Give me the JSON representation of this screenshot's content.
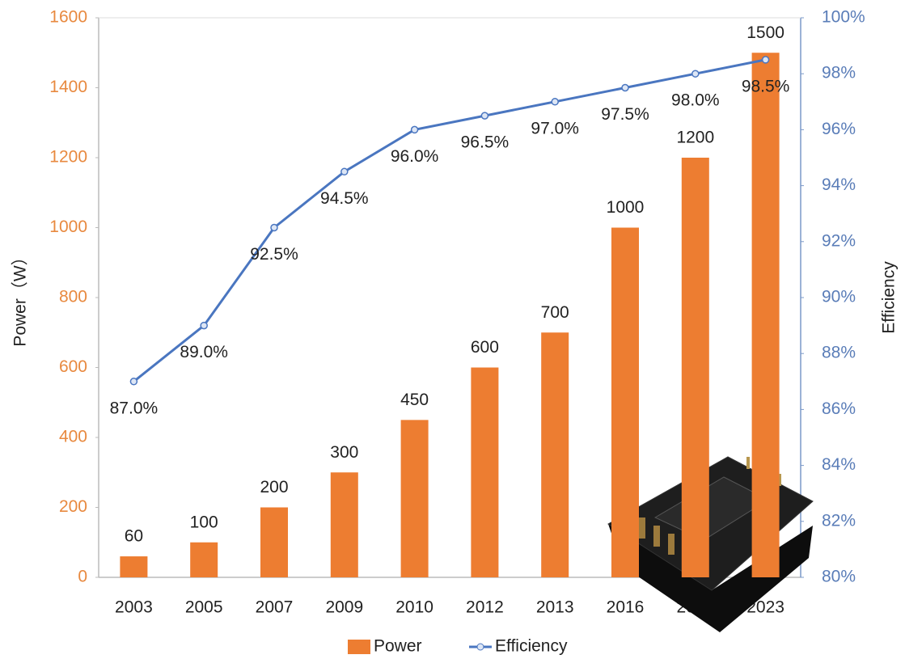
{
  "chart_data": {
    "type": "bar",
    "categories": [
      "2003",
      "2005",
      "2007",
      "2009",
      "2010",
      "2012",
      "2013",
      "2016",
      "2019",
      "2023"
    ],
    "series": [
      {
        "name": "Power",
        "type": "bar",
        "color": "#ED7D31",
        "values": [
          60,
          100,
          200,
          300,
          450,
          600,
          700,
          1000,
          1200,
          1500
        ]
      },
      {
        "name": "Efficiency",
        "type": "line",
        "axis": "y2",
        "color": "#4A76C0",
        "values": [
          87,
          89,
          92.5,
          94.5,
          96,
          96.5,
          97,
          97.5,
          98,
          98.5
        ],
        "value_labels": [
          "87.0%",
          "89.0%",
          "92.5%",
          "94.5%",
          "96.0%",
          "96.5%",
          "97.0%",
          "97.5%",
          "98.0%",
          "98.5%"
        ]
      }
    ],
    "ylabel": "Power（W）",
    "y2label": "Efficiency",
    "ylim": [
      0,
      1600
    ],
    "yticks": [
      0,
      200,
      400,
      600,
      800,
      1000,
      1200,
      1400,
      1600
    ],
    "y2lim": [
      80,
      100
    ],
    "y2ticks": [
      {
        "value": 80,
        "label": "80%"
      },
      {
        "value": 82,
        "label": "82%"
      },
      {
        "value": 84,
        "label": "84%"
      },
      {
        "value": 86,
        "label": "86%"
      },
      {
        "value": 88,
        "label": "88%"
      },
      {
        "value": 90,
        "label": "90%"
      },
      {
        "value": 92,
        "label": "92%"
      },
      {
        "value": 94,
        "label": "94%"
      },
      {
        "value": 96,
        "label": "96%"
      },
      {
        "value": 98,
        "label": "98%"
      },
      {
        "value": 100,
        "label": "100%"
      }
    ],
    "legend": "bottom"
  }
}
